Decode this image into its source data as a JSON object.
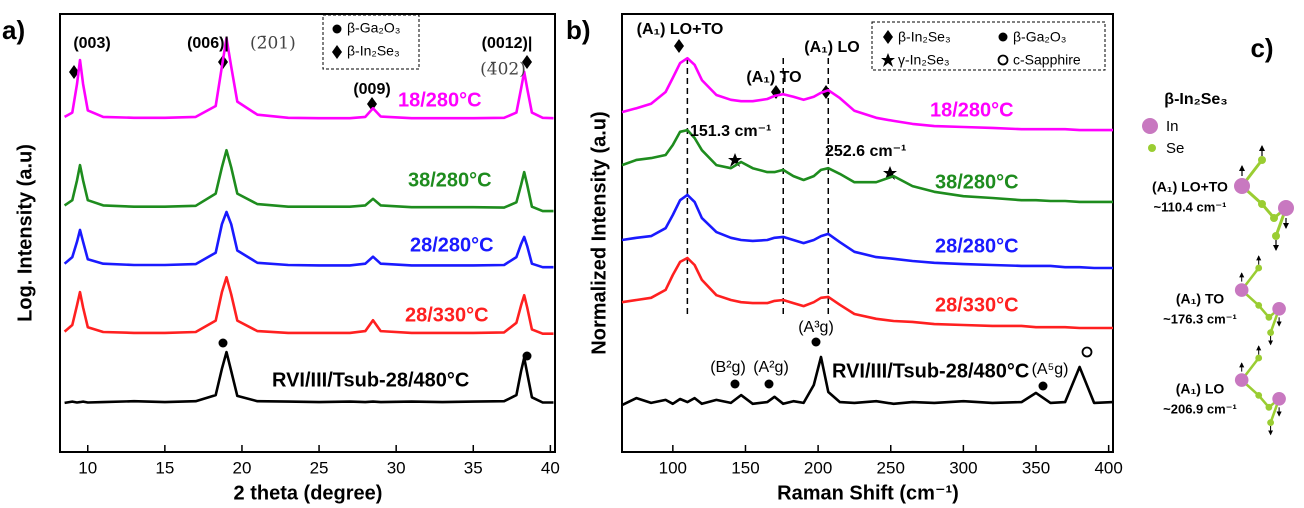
{
  "chart_data": [
    {
      "type": "line",
      "panel_label": "a)",
      "xlabel": "2 theta (degree)",
      "ylabel": "Log. Intensity (a.u)",
      "x": [
        8.5,
        9.0,
        9.3,
        9.5,
        9.7,
        10.0,
        11,
        13,
        15,
        17,
        18.3,
        18.7,
        19.0,
        19.3,
        19.7,
        21,
        23,
        25,
        27,
        28.0,
        28.5,
        29.0,
        31,
        33,
        35,
        37,
        37.8,
        38.1,
        38.3,
        38.5,
        38.8,
        39.5,
        40.2
      ],
      "xlim": [
        8.2,
        40.3
      ],
      "xticks": [
        10,
        15,
        20,
        25,
        30,
        35,
        40
      ],
      "ylim": [
        0,
        100
      ],
      "series": [
        {
          "name": "18/280°C",
          "color": "#ff00ff",
          "values": [
            76.5,
            77.5,
            84,
            89.5,
            84,
            78,
            76.5,
            76.3,
            76.3,
            76.5,
            79,
            88,
            94.5,
            88,
            80,
            77,
            76.3,
            76.2,
            76.2,
            76.5,
            78.5,
            76.6,
            76.2,
            76.2,
            76.2,
            76.3,
            77.5,
            83,
            86.8,
            83,
            77.5,
            76.3,
            76.2
          ]
        },
        {
          "name": "38/280°C",
          "color": "#1e8c1e",
          "values": [
            56.3,
            57.5,
            62,
            65.5,
            62,
            57.5,
            56.3,
            56,
            56,
            56.2,
            59,
            65,
            68.9,
            65,
            59,
            56.6,
            56,
            56,
            56,
            56.3,
            57.8,
            56.3,
            55.9,
            55.9,
            55.9,
            55.8,
            57,
            61,
            63.9,
            61,
            56,
            55,
            55
          ]
        },
        {
          "name": "28/280°C",
          "color": "#1a1aff",
          "values": [
            43,
            44.5,
            48,
            50.7,
            48,
            44,
            43,
            42.7,
            42.7,
            42.9,
            45.5,
            52,
            54.8,
            52,
            46,
            43.2,
            42.7,
            42.6,
            42.6,
            43,
            44.6,
            43,
            42.6,
            42.6,
            42.6,
            42.7,
            44.5,
            47.5,
            49.1,
            47,
            43,
            42.2,
            42.2
          ]
        },
        {
          "name": "28/330°C",
          "color": "#ff2020",
          "values": [
            27.5,
            29,
            33.5,
            36.5,
            33,
            28.5,
            27.4,
            27.2,
            27.2,
            27.4,
            30,
            36.5,
            39.9,
            36,
            30,
            27.6,
            27.2,
            27.2,
            27.2,
            27.6,
            30.1,
            27.6,
            27.2,
            27.2,
            27.2,
            27.3,
            29.5,
            33.5,
            35.8,
            33,
            28,
            27,
            27
          ]
        },
        {
          "name": "RVI/III/Tsub-28/480°C",
          "color": "#000000",
          "values": [
            11.2,
            11.5,
            11.3,
            11.4,
            11.5,
            11.3,
            11.4,
            11.6,
            11.4,
            11.6,
            13,
            19,
            22.8,
            18.5,
            12.8,
            11.6,
            11.5,
            11.4,
            11.5,
            11.4,
            11.5,
            11.4,
            11.5,
            11.4,
            11.5,
            11.6,
            13,
            18.5,
            21.5,
            18,
            12.5,
            11.3,
            11.3
          ]
        }
      ],
      "annotations": [
        "(003)",
        "(006)|",
        "(2̄01)",
        "(009)",
        "(0012)|",
        "(4̄02)"
      ],
      "legend": [
        "β-Ga₂O₃",
        "β-In₂Se₃"
      ]
    },
    {
      "type": "line",
      "panel_label": "b)",
      "xlabel": "Raman Shift (cm⁻¹)",
      "ylabel": "Normalized Intensity (a.u)",
      "x": [
        65,
        75,
        85,
        95,
        100,
        105,
        110,
        115,
        120,
        130,
        140,
        147,
        155,
        165,
        170,
        176,
        183,
        190,
        197,
        202,
        207,
        215,
        225,
        240,
        252,
        265,
        280,
        300,
        320,
        340,
        350,
        360,
        370,
        380,
        390,
        403
      ],
      "xlim": [
        65,
        403
      ],
      "xticks": [
        100,
        150,
        200,
        250,
        300,
        350,
        400
      ],
      "ylim": [
        0,
        100
      ],
      "dashed_x": [
        110,
        176,
        207
      ],
      "series": [
        {
          "name": "18/280°C",
          "color": "#ff00ff",
          "values": [
            77.6,
            78.5,
            79.5,
            82.2,
            85.4,
            88.8,
            89.9,
            88.4,
            84.9,
            81.5,
            80.4,
            80.1,
            80.1,
            80.6,
            81.3,
            81.7,
            81.1,
            80.4,
            81.1,
            82.0,
            82.6,
            80.8,
            77.9,
            76.3,
            75.6,
            74.9,
            74.4,
            74.2,
            74.0,
            73.7,
            73.7,
            73.7,
            73.7,
            73.5,
            73.5,
            73.5
          ]
        },
        {
          "name": "38/280°C",
          "color": "#1e8c1e",
          "values": [
            65.5,
            66.7,
            67.1,
            67.8,
            70.1,
            73.1,
            73.5,
            71.7,
            68.9,
            65.5,
            64.8,
            66.2,
            64.8,
            63.9,
            63.9,
            64.4,
            63.0,
            62.1,
            63.0,
            64.4,
            64.8,
            63.5,
            61.6,
            61.6,
            63.0,
            60.7,
            59.4,
            58.4,
            58.0,
            57.5,
            57.5,
            57.3,
            57.3,
            57.1,
            57.1,
            57.1
          ]
        },
        {
          "name": "28/280°C",
          "color": "#1a1aff",
          "values": [
            48.4,
            48.9,
            49.3,
            51.1,
            54.1,
            57.5,
            58.7,
            57.1,
            53.4,
            50.2,
            48.9,
            48.4,
            48.2,
            48.4,
            48.9,
            49.1,
            48.4,
            47.7,
            48.4,
            49.3,
            49.8,
            47.9,
            45.7,
            44.5,
            44.1,
            43.6,
            43.2,
            42.9,
            42.7,
            42.5,
            42.5,
            42.5,
            42.2,
            42.2,
            42.0,
            42.0
          ]
        },
        {
          "name": "28/330°C",
          "color": "#ff2020",
          "values": [
            34.2,
            34.7,
            35.2,
            37.0,
            40.4,
            43.4,
            44.3,
            42.7,
            39.3,
            35.8,
            34.7,
            34.2,
            34.0,
            34.0,
            34.5,
            34.7,
            34.0,
            33.3,
            34.2,
            35.2,
            35.4,
            33.6,
            31.5,
            30.4,
            29.9,
            29.7,
            29.2,
            29.0,
            28.8,
            28.8,
            28.5,
            28.5,
            28.5,
            28.3,
            28.3,
            28.3
          ]
        },
        {
          "name": "RVI/III/Tsub-28/480°C",
          "color": "#000000",
          "values": [
            10.7,
            12.3,
            11.2,
            11.9,
            11.0,
            12.1,
            11.4,
            12.3,
            11.0,
            11.9,
            11.2,
            13.0,
            11.0,
            11.4,
            12.6,
            11.0,
            11.6,
            11.2,
            15.3,
            21.7,
            13.7,
            11.4,
            11.2,
            11.6,
            11.0,
            11.4,
            11.2,
            11.6,
            11.2,
            11.4,
            13.5,
            11.2,
            11.4,
            19.4,
            11.2,
            11.4
          ]
        }
      ],
      "annotations": [
        "(A₁) LO+TO",
        "(A₁) TO",
        "(A₁) LO",
        "151.3 cm⁻¹",
        "252.6 cm⁻¹",
        "(B²g)",
        "(A²g)",
        "(A³g)",
        "(A⁵g)"
      ],
      "legend": [
        "β-In₂Se₃",
        "β-Ga₂O₃",
        "γ-In₂Se₃",
        "c-Sapphire"
      ]
    }
  ],
  "diagram": {
    "panel_label": "c)",
    "title": "β-In₂Se₃",
    "legend": [
      "In",
      "Se"
    ],
    "modes": [
      {
        "label": "(A₁) LO+TO",
        "value": "~110.4 cm⁻¹"
      },
      {
        "label": "(A₁) TO",
        "value": "~176.3 cm⁻¹"
      },
      {
        "label": "(A₁) LO",
        "value": "~206.9 cm⁻¹"
      }
    ]
  }
}
